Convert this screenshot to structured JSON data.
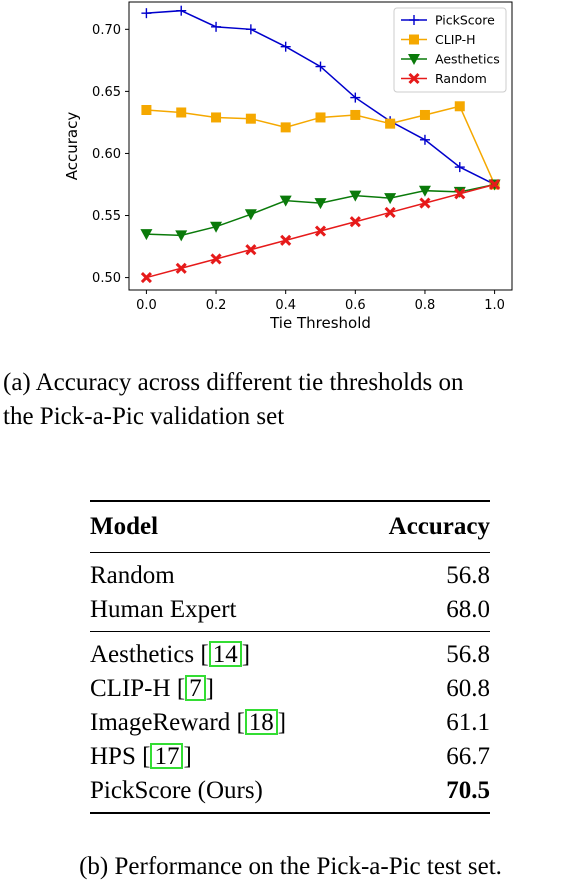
{
  "chart_data": {
    "type": "line",
    "xlabel": "Tie Threshold",
    "ylabel": "Accuracy",
    "x": [
      0.0,
      0.1,
      0.2,
      0.3,
      0.4,
      0.5,
      0.6,
      0.7,
      0.8,
      0.9,
      1.0
    ],
    "xlim": [
      -0.05,
      1.05
    ],
    "ylim": [
      0.49,
      0.722
    ],
    "xticks": [
      "0.0",
      "0.2",
      "0.4",
      "0.6",
      "0.8",
      "1.0"
    ],
    "yticks": [
      "0.50",
      "0.55",
      "0.60",
      "0.65",
      "0.70"
    ],
    "legend_position": "top-right",
    "grid": false,
    "series": [
      {
        "name": "PickScore",
        "color": "#0000cc",
        "marker": "plus",
        "values": [
          0.713,
          0.715,
          0.702,
          0.7,
          0.686,
          0.67,
          0.645,
          0.626,
          0.611,
          0.589,
          0.575
        ]
      },
      {
        "name": "CLIP-H",
        "color": "#f5a800",
        "marker": "square",
        "values": [
          0.635,
          0.633,
          0.629,
          0.628,
          0.621,
          0.629,
          0.631,
          0.624,
          0.631,
          0.638,
          0.575
        ]
      },
      {
        "name": "Aesthetics",
        "color": "#0a7a0a",
        "marker": "triangle-down",
        "values": [
          0.535,
          0.534,
          0.541,
          0.551,
          0.562,
          0.56,
          0.566,
          0.564,
          0.57,
          0.569,
          0.575
        ]
      },
      {
        "name": "Random",
        "color": "#e61a1a",
        "marker": "x",
        "values": [
          0.5,
          0.5075,
          0.515,
          0.5225,
          0.53,
          0.5375,
          0.545,
          0.5525,
          0.56,
          0.5675,
          0.575
        ]
      }
    ]
  },
  "caption_a": {
    "line1": "(a) Accuracy across different tie thresholds on",
    "line2": "the Pick-a-Pic validation set"
  },
  "table": {
    "header": {
      "model": "Model",
      "accuracy": "Accuracy"
    },
    "group1": [
      {
        "model": "Random",
        "accuracy": "56.8"
      },
      {
        "model": "Human Expert",
        "accuracy": "68.0"
      }
    ],
    "group2": [
      {
        "model": "Aesthetics",
        "cite": "14",
        "accuracy": "56.8"
      },
      {
        "model": "CLIP-H",
        "cite": "7",
        "accuracy": "60.8"
      },
      {
        "model": "ImageReward",
        "cite": "18",
        "accuracy": "61.1"
      },
      {
        "model": "HPS",
        "cite": "17",
        "accuracy": "66.7"
      },
      {
        "model": "PickScore (Ours)",
        "accuracy": "70.5"
      }
    ]
  },
  "caption_b": "(b) Performance on the Pick-a-Pic test set."
}
